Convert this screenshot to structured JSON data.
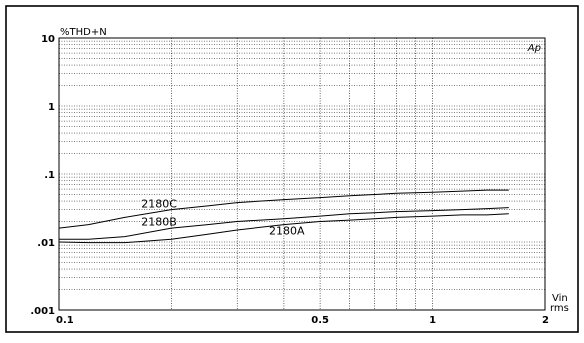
{
  "chart_data": {
    "type": "line",
    "title": "",
    "ylabel": "%THD+N",
    "xlabel": [
      "Vin",
      "rms"
    ],
    "corner_mark": "Ap",
    "x_scale": "log",
    "y_scale": "log",
    "xlim": [
      0.1,
      2
    ],
    "ylim": [
      0.001,
      10
    ],
    "x_ticks": [
      {
        "value": 0.1,
        "label": "0.1"
      },
      {
        "value": 0.5,
        "label": "0.5"
      },
      {
        "value": 1,
        "label": "1"
      },
      {
        "value": 2,
        "label": "2"
      }
    ],
    "y_ticks": [
      {
        "value": 10,
        "label": "10"
      },
      {
        "value": 1,
        "label": "1"
      },
      {
        "value": 0.1,
        "label": ".1"
      },
      {
        "value": 0.01,
        "label": ".01"
      },
      {
        "value": 0.001,
        "label": ".001"
      }
    ],
    "grid": true,
    "series": [
      {
        "name": "2180C",
        "x": [
          0.1,
          0.12,
          0.15,
          0.2,
          0.25,
          0.3,
          0.4,
          0.5,
          0.6,
          0.7,
          0.8,
          1.0,
          1.2,
          1.4,
          1.6
        ],
        "y": [
          0.016,
          0.018,
          0.023,
          0.03,
          0.034,
          0.038,
          0.042,
          0.045,
          0.048,
          0.05,
          0.052,
          0.054,
          0.056,
          0.058,
          0.058
        ]
      },
      {
        "name": "2180B",
        "x": [
          0.1,
          0.12,
          0.15,
          0.2,
          0.25,
          0.3,
          0.4,
          0.5,
          0.6,
          0.7,
          0.8,
          1.0,
          1.2,
          1.4,
          1.6
        ],
        "y": [
          0.011,
          0.011,
          0.012,
          0.016,
          0.018,
          0.02,
          0.022,
          0.024,
          0.026,
          0.027,
          0.028,
          0.029,
          0.03,
          0.031,
          0.032
        ]
      },
      {
        "name": "2180A",
        "x": [
          0.1,
          0.12,
          0.15,
          0.2,
          0.25,
          0.3,
          0.4,
          0.5,
          0.6,
          0.7,
          0.8,
          1.0,
          1.2,
          1.4,
          1.6
        ],
        "y": [
          0.01,
          0.0098,
          0.0098,
          0.011,
          0.013,
          0.015,
          0.018,
          0.02,
          0.021,
          0.022,
          0.023,
          0.024,
          0.025,
          0.025,
          0.026
        ]
      }
    ]
  }
}
